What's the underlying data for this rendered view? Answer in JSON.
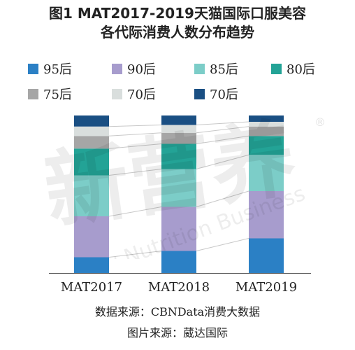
{
  "title_line1": "图1 MAT2017-2019天猫国际口服美容",
  "title_line2": "各代际消费人数分布趋势",
  "source": "数据来源：CBNData消费大数据",
  "image_source": "图片来源：葳达国际",
  "watermark": {
    "main": "新营养",
    "sub": "New Nutrition Business",
    "mark": "®"
  },
  "chart_data": {
    "type": "bar",
    "stacked": true,
    "normalized": true,
    "categories": [
      "MAT2017",
      "MAT2018",
      "MAT2019"
    ],
    "ylim": [
      0,
      100
    ],
    "grid": false,
    "legend_position": "top",
    "series": [
      {
        "name": "95后",
        "color": "#2b80c5",
        "values": [
          10,
          14,
          22
        ]
      },
      {
        "name": "90后",
        "color": "#a79ccd",
        "values": [
          26,
          28,
          30
        ]
      },
      {
        "name": "85后",
        "color": "#7ccdc8",
        "values": [
          26,
          24,
          23
        ]
      },
      {
        "name": "80后",
        "color": "#23a396",
        "values": [
          17,
          16,
          12
        ]
      },
      {
        "name": "75后",
        "color": "#a6a6a6",
        "values": [
          8,
          7,
          6
        ]
      },
      {
        "name": "70后",
        "color": "#d9dedd",
        "values": [
          6,
          5,
          3
        ]
      },
      {
        "name": "70后",
        "color": "#1a4f83",
        "values": [
          7,
          6,
          4
        ]
      }
    ]
  }
}
